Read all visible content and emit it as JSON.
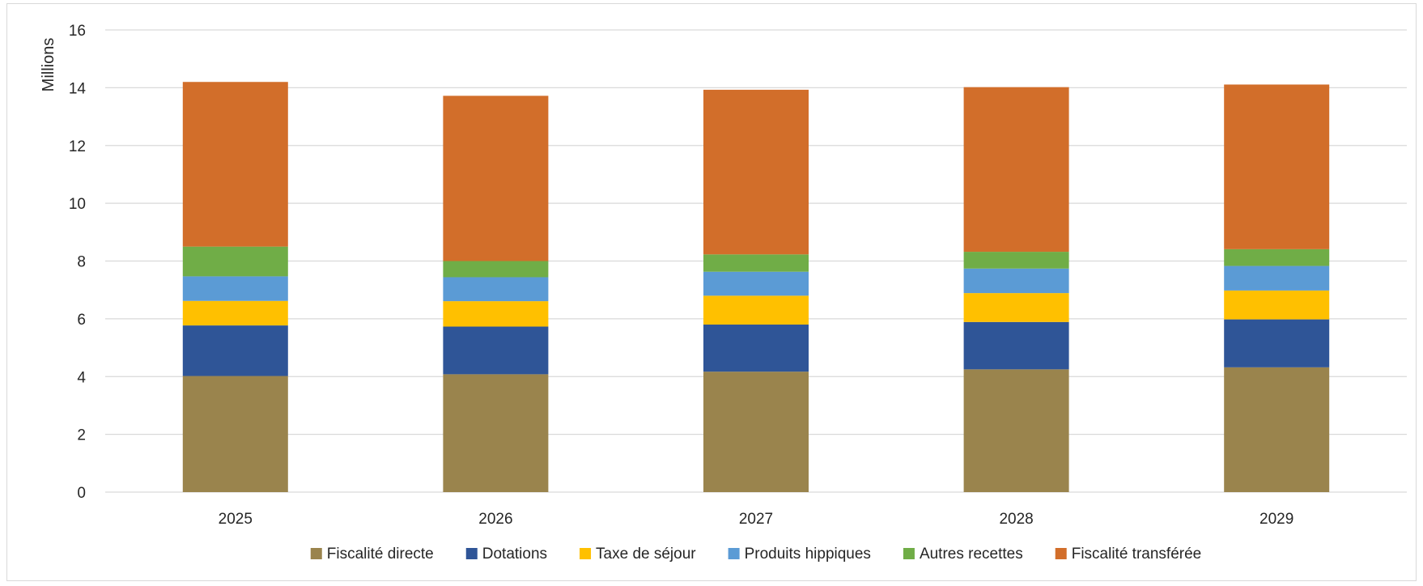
{
  "chart_data": {
    "type": "bar",
    "stacked": true,
    "title": "",
    "xlabel": "",
    "ylabel": "Millions",
    "ylim": [
      0,
      16
    ],
    "yticks": [
      0,
      2,
      4,
      6,
      8,
      10,
      12,
      14,
      16
    ],
    "grid": true,
    "legend_position": "bottom",
    "categories": [
      "2025",
      "2026",
      "2027",
      "2028",
      "2029"
    ],
    "series": [
      {
        "name": "Fiscalité directe",
        "color": "#9A844D",
        "values": [
          4.02,
          4.08,
          4.17,
          4.25,
          4.32
        ]
      },
      {
        "name": "Dotations",
        "color": "#2F5597",
        "values": [
          1.75,
          1.65,
          1.63,
          1.64,
          1.66
        ]
      },
      {
        "name": "Taxe de séjour",
        "color": "#FFC000",
        "values": [
          0.85,
          0.88,
          1.0,
          1.0,
          1.0
        ]
      },
      {
        "name": "Produits hippiques",
        "color": "#5B9BD5",
        "values": [
          0.85,
          0.83,
          0.83,
          0.85,
          0.85
        ]
      },
      {
        "name": "Autres recettes",
        "color": "#70AD47",
        "values": [
          1.03,
          0.56,
          0.6,
          0.58,
          0.58
        ]
      },
      {
        "name": "Fiscalité transférée",
        "color": "#D26E2A",
        "values": [
          5.7,
          5.72,
          5.7,
          5.7,
          5.7
        ]
      }
    ]
  }
}
